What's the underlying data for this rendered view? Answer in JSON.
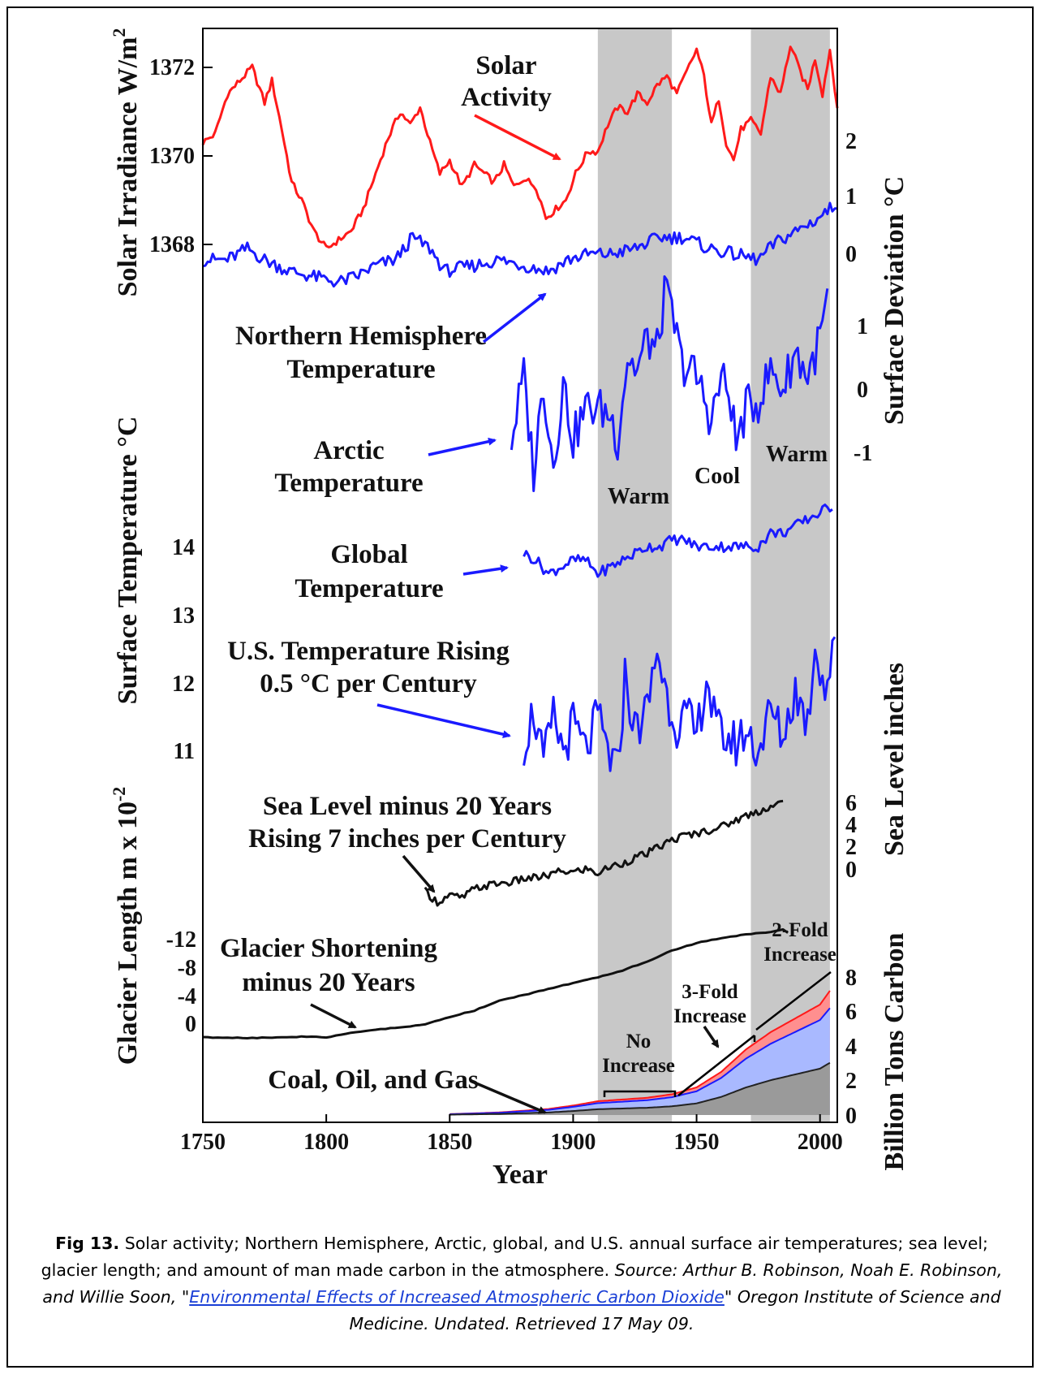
{
  "chart_data": {
    "type": "line",
    "x_axis": {
      "label": "Year",
      "ticks": [
        1750,
        1800,
        1850,
        1900,
        1950,
        2000
      ],
      "range": [
        1750,
        2007
      ]
    },
    "shaded_periods": [
      [
        1910,
        1940
      ],
      [
        1972,
        2004
      ]
    ],
    "period_labels": [
      "Warm",
      "Cool",
      "Warm"
    ],
    "left_axes": [
      {
        "label": "Solar Irradiance W/m",
        "superscript": "2",
        "ticks": [
          "1372",
          "1370",
          "1368"
        ]
      },
      {
        "label": "Surface Temperature °C",
        "ticks": [
          "14",
          "13",
          "12",
          "11"
        ]
      },
      {
        "label": "Glacier Length m x 10",
        "superscript": "-2",
        "ticks": [
          "-12",
          "-8",
          "-4",
          "0"
        ]
      }
    ],
    "right_axes": [
      {
        "label": "Surface Deviation °C",
        "ticks": [
          "2",
          "1",
          "0",
          "1",
          "0",
          "-1"
        ]
      },
      {
        "label": "Sea Level inches",
        "ticks": [
          "6",
          "4",
          "2",
          "0"
        ]
      },
      {
        "label": "Billion Tons Carbon",
        "ticks": [
          "8",
          "6",
          "4",
          "2",
          "0"
        ]
      }
    ],
    "series": [
      {
        "name": "Solar Activity",
        "color": "#ff1a1a",
        "unit": "W/m2",
        "points": [
          [
            1750,
            1370.3
          ],
          [
            1755,
            1370.5
          ],
          [
            1760,
            1371.4
          ],
          [
            1765,
            1371.7
          ],
          [
            1770,
            1372.0
          ],
          [
            1775,
            1371.2
          ],
          [
            1778,
            1371.7
          ],
          [
            1782,
            1370.6
          ],
          [
            1786,
            1369.4
          ],
          [
            1790,
            1369.0
          ],
          [
            1795,
            1368.3
          ],
          [
            1800,
            1367.9
          ],
          [
            1805,
            1368.1
          ],
          [
            1810,
            1368.3
          ],
          [
            1815,
            1368.8
          ],
          [
            1820,
            1369.6
          ],
          [
            1825,
            1370.4
          ],
          [
            1830,
            1371.0
          ],
          [
            1834,
            1370.7
          ],
          [
            1838,
            1371.1
          ],
          [
            1842,
            1370.3
          ],
          [
            1846,
            1369.6
          ],
          [
            1850,
            1369.9
          ],
          [
            1855,
            1369.3
          ],
          [
            1860,
            1369.8
          ],
          [
            1864,
            1369.6
          ],
          [
            1868,
            1369.4
          ],
          [
            1872,
            1369.8
          ],
          [
            1876,
            1369.3
          ],
          [
            1880,
            1369.5
          ],
          [
            1885,
            1369.3
          ],
          [
            1889,
            1368.6
          ],
          [
            1893,
            1368.8
          ],
          [
            1897,
            1369.0
          ],
          [
            1901,
            1369.6
          ],
          [
            1906,
            1370.1
          ],
          [
            1910,
            1370.1
          ],
          [
            1914,
            1370.7
          ],
          [
            1918,
            1371.1
          ],
          [
            1922,
            1371.0
          ],
          [
            1926,
            1371.4
          ],
          [
            1930,
            1371.2
          ],
          [
            1934,
            1371.6
          ],
          [
            1938,
            1371.8
          ],
          [
            1942,
            1371.4
          ],
          [
            1946,
            1371.9
          ],
          [
            1950,
            1372.4
          ],
          [
            1953,
            1371.8
          ],
          [
            1956,
            1370.7
          ],
          [
            1959,
            1371.3
          ],
          [
            1962,
            1370.3
          ],
          [
            1965,
            1369.9
          ],
          [
            1968,
            1370.6
          ],
          [
            1972,
            1370.8
          ],
          [
            1976,
            1370.5
          ],
          [
            1980,
            1371.8
          ],
          [
            1984,
            1371.4
          ],
          [
            1988,
            1372.5
          ],
          [
            1992,
            1371.9
          ],
          [
            1995,
            1371.5
          ],
          [
            1998,
            1372.2
          ],
          [
            2001,
            1371.4
          ],
          [
            2004,
            1372.4
          ],
          [
            2007,
            1371.1
          ]
        ]
      },
      {
        "name": "Northern Hemisphere Temperature",
        "color": "#1a1aff",
        "unit": "°C deviation",
        "points": [
          [
            1750,
            -0.1
          ],
          [
            1760,
            -0.1
          ],
          [
            1768,
            0.1
          ],
          [
            1775,
            -0.1
          ],
          [
            1785,
            -0.3
          ],
          [
            1795,
            -0.4
          ],
          [
            1805,
            -0.5
          ],
          [
            1812,
            -0.4
          ],
          [
            1820,
            -0.2
          ],
          [
            1828,
            -0.1
          ],
          [
            1835,
            0.3
          ],
          [
            1842,
            0.1
          ],
          [
            1848,
            -0.3
          ],
          [
            1860,
            -0.2
          ],
          [
            1870,
            -0.1
          ],
          [
            1880,
            -0.2
          ],
          [
            1890,
            -0.3
          ],
          [
            1898,
            -0.1
          ],
          [
            1906,
            0.0
          ],
          [
            1915,
            0.0
          ],
          [
            1925,
            0.1
          ],
          [
            1935,
            0.3
          ],
          [
            1945,
            0.3
          ],
          [
            1955,
            0.1
          ],
          [
            1965,
            0.0
          ],
          [
            1975,
            -0.1
          ],
          [
            1982,
            0.2
          ],
          [
            1990,
            0.4
          ],
          [
            1998,
            0.6
          ],
          [
            2007,
            0.9
          ]
        ]
      },
      {
        "name": "Arctic Temperature",
        "color": "#1a1aff",
        "unit": "°C deviation",
        "points": [
          [
            1875,
            -0.8
          ],
          [
            1880,
            0.2
          ],
          [
            1884,
            -1.3
          ],
          [
            1888,
            0.1
          ],
          [
            1892,
            -1.2
          ],
          [
            1896,
            0.1
          ],
          [
            1900,
            -0.8
          ],
          [
            1905,
            -0.3
          ],
          [
            1910,
            -0.3
          ],
          [
            1915,
            -0.4
          ],
          [
            1918,
            -0.8
          ],
          [
            1922,
            0.5
          ],
          [
            1926,
            0.3
          ],
          [
            1930,
            0.8
          ],
          [
            1934,
            0.6
          ],
          [
            1937,
            1.5
          ],
          [
            1940,
            1.2
          ],
          [
            1944,
            0.4
          ],
          [
            1948,
            0.3
          ],
          [
            1952,
            0.0
          ],
          [
            1956,
            -0.5
          ],
          [
            1960,
            0.2
          ],
          [
            1964,
            -0.2
          ],
          [
            1966,
            -0.9
          ],
          [
            1970,
            -0.3
          ],
          [
            1975,
            -0.2
          ],
          [
            1980,
            0.3
          ],
          [
            1985,
            0.0
          ],
          [
            1990,
            0.6
          ],
          [
            1995,
            0.2
          ],
          [
            2000,
            0.8
          ],
          [
            2003,
            1.4
          ]
        ]
      },
      {
        "name": "Global Temperature",
        "color": "#1a1aff",
        "unit": "°C",
        "points": [
          [
            1880,
            13.9
          ],
          [
            1885,
            13.8
          ],
          [
            1890,
            13.6
          ],
          [
            1895,
            13.7
          ],
          [
            1900,
            13.8
          ],
          [
            1905,
            13.8
          ],
          [
            1910,
            13.6
          ],
          [
            1915,
            13.7
          ],
          [
            1920,
            13.8
          ],
          [
            1925,
            13.9
          ],
          [
            1930,
            14.0
          ],
          [
            1935,
            14.0
          ],
          [
            1940,
            14.1
          ],
          [
            1945,
            14.1
          ],
          [
            1950,
            14.0
          ],
          [
            1955,
            14.0
          ],
          [
            1960,
            14.0
          ],
          [
            1965,
            14.0
          ],
          [
            1970,
            14.0
          ],
          [
            1975,
            14.0
          ],
          [
            1980,
            14.2
          ],
          [
            1985,
            14.2
          ],
          [
            1990,
            14.3
          ],
          [
            1995,
            14.4
          ],
          [
            2000,
            14.5
          ],
          [
            2005,
            14.6
          ]
        ]
      },
      {
        "name": "U.S. Temperature",
        "color": "#1a1aff",
        "unit": "°C",
        "points": [
          [
            1880,
            11.1
          ],
          [
            1884,
            11.6
          ],
          [
            1888,
            10.8
          ],
          [
            1892,
            11.5
          ],
          [
            1896,
            11.0
          ],
          [
            1900,
            11.4
          ],
          [
            1905,
            11.0
          ],
          [
            1910,
            11.5
          ],
          [
            1915,
            10.9
          ],
          [
            1918,
            10.7
          ],
          [
            1921,
            12.1
          ],
          [
            1925,
            11.3
          ],
          [
            1930,
            11.6
          ],
          [
            1934,
            12.5
          ],
          [
            1938,
            11.8
          ],
          [
            1942,
            11.4
          ],
          [
            1946,
            11.5
          ],
          [
            1950,
            11.2
          ],
          [
            1954,
            12.1
          ],
          [
            1958,
            11.3
          ],
          [
            1962,
            11.2
          ],
          [
            1966,
            11.1
          ],
          [
            1970,
            11.3
          ],
          [
            1975,
            11.0
          ],
          [
            1980,
            11.6
          ],
          [
            1985,
            11.2
          ],
          [
            1990,
            11.9
          ],
          [
            1995,
            11.4
          ],
          [
            1998,
            12.6
          ],
          [
            2002,
            11.9
          ],
          [
            2006,
            12.5
          ]
        ]
      },
      {
        "name": "Sea Level",
        "color": "#111111",
        "unit": "inches",
        "points": [
          [
            1840,
            -2.0
          ],
          [
            1845,
            -3.0
          ],
          [
            1850,
            -2.4
          ],
          [
            1855,
            -2.6
          ],
          [
            1860,
            -1.8
          ],
          [
            1865,
            -1.5
          ],
          [
            1870,
            -1.3
          ],
          [
            1875,
            -1.2
          ],
          [
            1880,
            -0.9
          ],
          [
            1885,
            -0.8
          ],
          [
            1890,
            -0.6
          ],
          [
            1895,
            -0.2
          ],
          [
            1900,
            -0.3
          ],
          [
            1905,
            0.0
          ],
          [
            1910,
            -0.4
          ],
          [
            1915,
            0.2
          ],
          [
            1920,
            0.5
          ],
          [
            1925,
            1.0
          ],
          [
            1930,
            1.4
          ],
          [
            1935,
            2.0
          ],
          [
            1940,
            2.6
          ],
          [
            1945,
            3.0
          ],
          [
            1950,
            3.2
          ],
          [
            1955,
            3.5
          ],
          [
            1960,
            3.8
          ],
          [
            1965,
            4.3
          ],
          [
            1970,
            4.8
          ],
          [
            1975,
            5.2
          ],
          [
            1980,
            5.6
          ],
          [
            1985,
            6.0
          ]
        ]
      },
      {
        "name": "Glacier Length",
        "color": "#111111",
        "unit": "m x 10^-2",
        "points": [
          [
            1750,
            2.0
          ],
          [
            1770,
            2.1
          ],
          [
            1790,
            1.9
          ],
          [
            1800,
            2.0
          ],
          [
            1810,
            1.4
          ],
          [
            1820,
            0.9
          ],
          [
            1830,
            0.6
          ],
          [
            1840,
            0.2
          ],
          [
            1850,
            -0.9
          ],
          [
            1860,
            -1.8
          ],
          [
            1870,
            -3.2
          ],
          [
            1880,
            -4.0
          ],
          [
            1890,
            -4.9
          ],
          [
            1900,
            -5.7
          ],
          [
            1910,
            -6.5
          ],
          [
            1920,
            -7.5
          ],
          [
            1930,
            -8.8
          ],
          [
            1940,
            -10.3
          ],
          [
            1950,
            -11.4
          ],
          [
            1960,
            -12.1
          ],
          [
            1970,
            -12.6
          ],
          [
            1980,
            -13.0
          ],
          [
            1985,
            -13.3
          ],
          [
            1987,
            -12.9
          ]
        ]
      },
      {
        "name": "Coal, Oil, and Gas",
        "color": "#111111",
        "unit": "billion tons carbon",
        "points": [
          [
            1850,
            0.05
          ],
          [
            1870,
            0.15
          ],
          [
            1890,
            0.35
          ],
          [
            1900,
            0.55
          ],
          [
            1910,
            0.8
          ],
          [
            1920,
            0.9
          ],
          [
            1930,
            1.0
          ],
          [
            1940,
            1.2
          ],
          [
            1950,
            1.6
          ],
          [
            1960,
            2.5
          ],
          [
            1970,
            3.8
          ],
          [
            1980,
            4.8
          ],
          [
            1990,
            5.6
          ],
          [
            2000,
            6.4
          ],
          [
            2004,
            7.2
          ]
        ]
      }
    ]
  },
  "annotations": {
    "solar_l1": "Solar",
    "solar_l2": "Activity",
    "nh_l1": "Northern Hemisphere",
    "nh_l2": "Temperature",
    "arctic_l1": "Arctic",
    "arctic_l2": "Temperature",
    "global_l1": "Global",
    "global_l2": "Temperature",
    "us_l1": "U.S. Temperature Rising",
    "us_l2": "0.5 °C per Century",
    "sea_l1": "Sea Level minus 20 Years",
    "sea_l2": "Rising 7 inches per Century",
    "glacier_l1": "Glacier Shortening",
    "glacier_l2": "minus 20 Years",
    "coal": "Coal, Oil, and Gas",
    "warm1": "Warm",
    "cool": "Cool",
    "warm2": "Warm",
    "no_inc_l1": "No",
    "no_inc_l2": "Increase",
    "three_l1": "3-Fold",
    "three_l2": "Increase",
    "two_l1": "2-Fold",
    "two_l2": "Increase"
  },
  "caption": {
    "label": "Fig 13.",
    "text": " Solar activity; Northern Hemisphere, Arctic, global, and U.S. annual surface air temperatures; sea level; glacier length; and amount of man made carbon in the atmosphere.",
    "source_prefix": "Source: Arthur B. Robinson, Noah E. Robinson, and Willie Soon,",
    "link_text": "Environmental Effects of Increased Atmospheric Carbon Dioxide",
    "source_suffix": "Oregon Institute of Science and Medicine. Undated. Retrieved 17 May 09."
  }
}
